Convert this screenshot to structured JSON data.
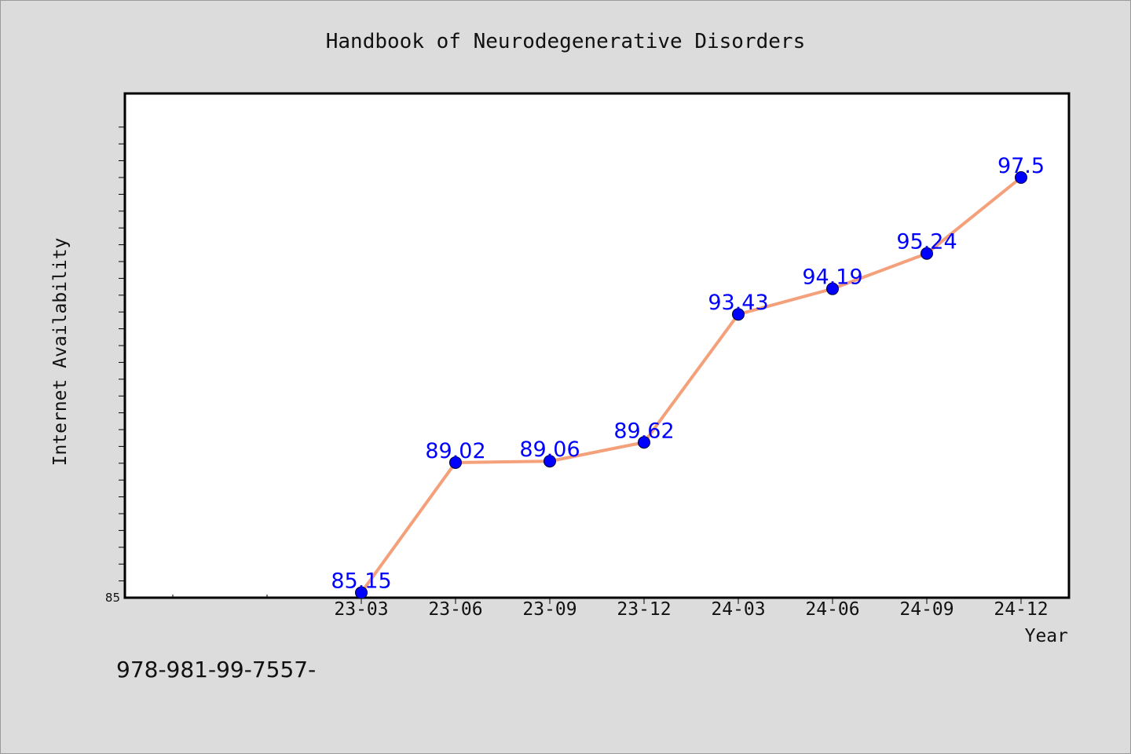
{
  "chart_data": {
    "type": "line",
    "title": "Handbook of Neurodegenerative Disorders",
    "xlabel": "Year",
    "ylabel": "Internet Availability",
    "categories": [
      "23-03",
      "23-06",
      "23-09",
      "23-12",
      "24-03",
      "24-06",
      "24-09",
      "24-12"
    ],
    "series": [
      {
        "values": [
          85.15,
          89.02,
          89.06,
          89.62,
          93.43,
          94.19,
          95.24,
          97.5
        ],
        "labels": [
          "85.15",
          "89.02",
          "89.06",
          "89.62",
          "93.43",
          "94.19",
          "95.24",
          "97.5"
        ]
      }
    ],
    "ylim": [
      85,
      100
    ],
    "ytick_labels": [
      "85"
    ],
    "grid": false,
    "legend": "none",
    "colors": {
      "line": "#f4a07a",
      "marker": "#0000ff",
      "data_label": "#0000ff",
      "plot_background": "#ffffff",
      "page_background": "#dcdcdc"
    }
  },
  "footer": {
    "isbn_text": "978-981-99-7557-"
  }
}
